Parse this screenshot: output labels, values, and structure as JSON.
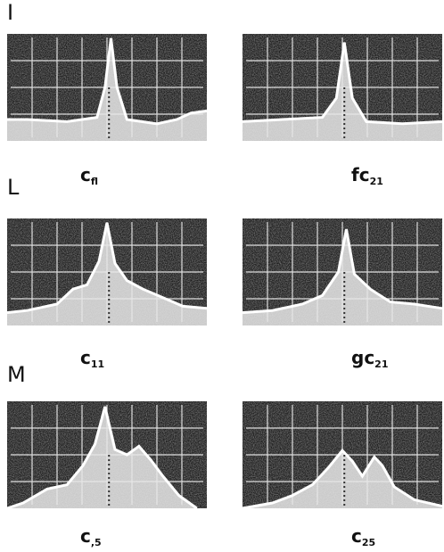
{
  "rows": [
    {
      "label": "I",
      "panels": [
        {
          "caption": {
            "main": "c",
            "sub": "fl"
          }
        },
        {
          "caption": {
            "main": "fc",
            "sub": "21"
          }
        }
      ]
    },
    {
      "label": "L",
      "panels": [
        {
          "caption": {
            "main": "c",
            "sub": "11"
          }
        },
        {
          "caption": {
            "main": "gc",
            "sub": "21"
          }
        }
      ]
    },
    {
      "label": "M",
      "panels": [
        {
          "caption": {
            "main": "c",
            "sub": ",5"
          }
        },
        {
          "caption": {
            "main": "c",
            "sub": "25"
          }
        }
      ]
    }
  ]
}
